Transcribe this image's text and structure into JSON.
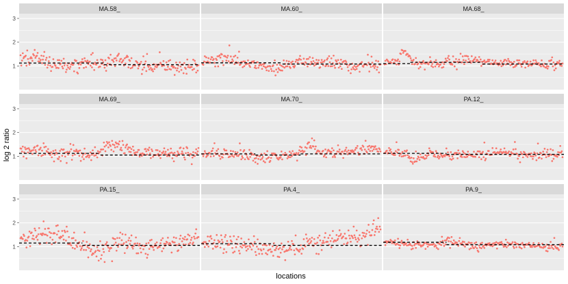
{
  "chart_data": {
    "type": "scatter",
    "layout": "facet-grid-3x3",
    "xlabel": "locations",
    "ylabel": "log 2 ratio",
    "ylim": [
      0,
      3.2
    ],
    "yticks": [
      1,
      2,
      3
    ],
    "grid": true,
    "colors": {
      "points": "#f8766d",
      "panel_bg": "#ebebeb",
      "strip_bg": "#d9d9d9",
      "grid": "#ffffff",
      "reference_line": "#000000"
    },
    "points_per_panel": 240,
    "panels": [
      {
        "label": "MA.58_",
        "segments": [
          {
            "from": 0,
            "to": 0.47,
            "value": 1.12
          },
          {
            "from": 0.47,
            "to": 1,
            "value": 1.05
          }
        ],
        "shape": [
          [
            0,
            1.3
          ],
          [
            0.08,
            1.35
          ],
          [
            0.15,
            1.2
          ],
          [
            0.25,
            0.9
          ],
          [
            0.35,
            1.2
          ],
          [
            0.45,
            1.05
          ],
          [
            0.55,
            1.3
          ],
          [
            0.65,
            1.05
          ],
          [
            0.8,
            1.0
          ],
          [
            1,
            0.95
          ]
        ],
        "spread": 0.17
      },
      {
        "label": "MA.60_",
        "segments": [
          {
            "from": 0,
            "to": 0.45,
            "value": 1.13
          },
          {
            "from": 0.45,
            "to": 1,
            "value": 1.08
          }
        ],
        "shape": [
          [
            0,
            1.2
          ],
          [
            0.12,
            1.3
          ],
          [
            0.25,
            1.1
          ],
          [
            0.4,
            0.9
          ],
          [
            0.55,
            1.2
          ],
          [
            0.7,
            1.15
          ],
          [
            0.85,
            1.0
          ],
          [
            1,
            0.98
          ]
        ],
        "spread": 0.13
      },
      {
        "label": "MA.68_",
        "segments": [
          {
            "from": 0,
            "to": 0.15,
            "value": 1.1
          },
          {
            "from": 0.15,
            "to": 0.55,
            "value": 1.15
          },
          {
            "from": 0.55,
            "to": 1,
            "value": 1.08
          }
        ],
        "shape": [
          [
            0,
            1.1
          ],
          [
            0.08,
            1.2
          ],
          [
            0.1,
            1.65
          ],
          [
            0.18,
            1.1
          ],
          [
            0.35,
            1.15
          ],
          [
            0.45,
            1.3
          ],
          [
            0.6,
            1.15
          ],
          [
            0.75,
            1.1
          ],
          [
            1,
            1.05
          ]
        ],
        "spread": 0.1
      },
      {
        "label": "MA.69_",
        "segments": [
          {
            "from": 0,
            "to": 0.45,
            "value": 1.12
          },
          {
            "from": 0.45,
            "to": 1,
            "value": 1.05
          }
        ],
        "shape": [
          [
            0,
            1.2
          ],
          [
            0.1,
            1.35
          ],
          [
            0.2,
            1.0
          ],
          [
            0.3,
            1.25
          ],
          [
            0.4,
            0.95
          ],
          [
            0.5,
            1.5
          ],
          [
            0.6,
            1.25
          ],
          [
            0.75,
            1.1
          ],
          [
            1,
            1.05
          ]
        ],
        "spread": 0.14
      },
      {
        "label": "MA.70_",
        "segments": [
          {
            "from": 0,
            "to": 0.3,
            "value": 1.1
          },
          {
            "from": 0.3,
            "to": 0.55,
            "value": 1.05
          },
          {
            "from": 0.55,
            "to": 1,
            "value": 1.1
          }
        ],
        "shape": [
          [
            0,
            1.1
          ],
          [
            0.2,
            1.05
          ],
          [
            0.35,
            0.95
          ],
          [
            0.55,
            1.1
          ],
          [
            0.6,
            1.5
          ],
          [
            0.7,
            1.1
          ],
          [
            0.85,
            1.2
          ],
          [
            1,
            1.3
          ]
        ],
        "spread": 0.12
      },
      {
        "label": "PA.12_",
        "segments": [
          {
            "from": 0,
            "to": 0.35,
            "value": 1.12
          },
          {
            "from": 0.35,
            "to": 1,
            "value": 1.08
          }
        ],
        "shape": [
          [
            0,
            1.2
          ],
          [
            0.12,
            1.15
          ],
          [
            0.15,
            0.8
          ],
          [
            0.25,
            1.1
          ],
          [
            0.5,
            1.05
          ],
          [
            0.65,
            1.15
          ],
          [
            0.8,
            1.05
          ],
          [
            1,
            1.1
          ]
        ],
        "spread": 0.1
      },
      {
        "label": "PA.15_",
        "segments": [
          {
            "from": 0,
            "to": 0.35,
            "value": 1.15
          },
          {
            "from": 0.35,
            "to": 1,
            "value": 1.05
          }
        ],
        "shape": [
          [
            0,
            1.3
          ],
          [
            0.1,
            1.5
          ],
          [
            0.2,
            1.6
          ],
          [
            0.3,
            1.2
          ],
          [
            0.42,
            0.65
          ],
          [
            0.55,
            1.2
          ],
          [
            0.7,
            1.0
          ],
          [
            0.85,
            1.1
          ],
          [
            1,
            1.4
          ]
        ],
        "spread": 0.2
      },
      {
        "label": "PA.4_",
        "segments": [
          {
            "from": 0,
            "to": 0.4,
            "value": 1.12
          },
          {
            "from": 0.4,
            "to": 1,
            "value": 1.05
          }
        ],
        "shape": [
          [
            0,
            1.1
          ],
          [
            0.2,
            1.15
          ],
          [
            0.38,
            0.85
          ],
          [
            0.48,
            0.8
          ],
          [
            0.6,
            1.2
          ],
          [
            0.8,
            1.35
          ],
          [
            0.95,
            1.55
          ],
          [
            1,
            1.9
          ]
        ],
        "spread": 0.18
      },
      {
        "label": "PA.9_",
        "segments": [
          {
            "from": 0,
            "to": 0.35,
            "value": 1.18
          },
          {
            "from": 0.35,
            "to": 1,
            "value": 1.08
          }
        ],
        "shape": [
          [
            0,
            1.2
          ],
          [
            0.15,
            1.1
          ],
          [
            0.3,
            1.05
          ],
          [
            0.35,
            1.25
          ],
          [
            0.5,
            1.0
          ],
          [
            0.7,
            1.1
          ],
          [
            0.85,
            1.05
          ],
          [
            1,
            1.0
          ]
        ],
        "spread": 0.08
      }
    ]
  }
}
